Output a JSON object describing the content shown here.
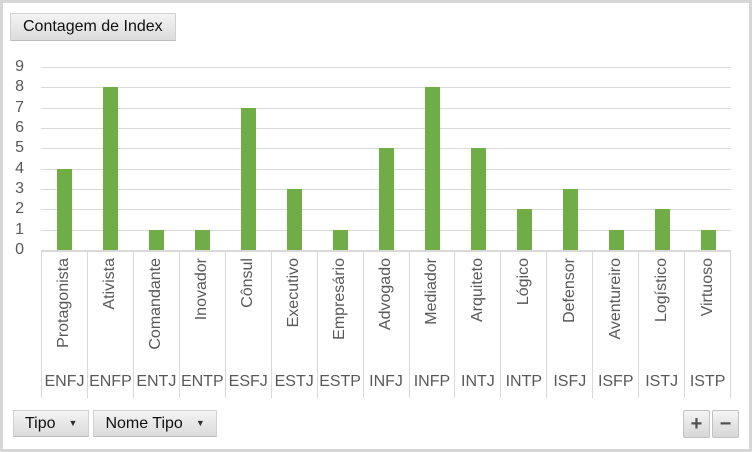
{
  "field_buttons": {
    "value_button_label": "Contagem de Index",
    "axis_buttons": [
      {
        "label": "Tipo"
      },
      {
        "label": "Nome Tipo"
      }
    ],
    "dropdown_arrow_icon": "▼",
    "expand_button_label": "+",
    "collapse_button_label": "−"
  },
  "chart_data": {
    "type": "bar",
    "series": [
      {
        "name": "Contagem de Index",
        "values": [
          4,
          8,
          1,
          1,
          7,
          3,
          1,
          5,
          8,
          5,
          2,
          3,
          1,
          2,
          1
        ]
      }
    ],
    "categories": [
      {
        "name": "Protagonista",
        "code": "ENFJ"
      },
      {
        "name": "Ativista",
        "code": "ENFP"
      },
      {
        "name": "Comandante",
        "code": "ENTJ"
      },
      {
        "name": "Inovador",
        "code": "ENTP"
      },
      {
        "name": "Cônsul",
        "code": "ESFJ"
      },
      {
        "name": "Executivo",
        "code": "ESTJ"
      },
      {
        "name": "Empresário",
        "code": "ESTP"
      },
      {
        "name": "Advogado",
        "code": "INFJ"
      },
      {
        "name": "Mediador",
        "code": "INFP"
      },
      {
        "name": "Arquiteto",
        "code": "INTJ"
      },
      {
        "name": "Lógico",
        "code": "INTP"
      },
      {
        "name": "Defensor",
        "code": "ISFJ"
      },
      {
        "name": "Aventureiro",
        "code": "ISFP"
      },
      {
        "name": "Logístico",
        "code": "ISTJ"
      },
      {
        "name": "Virtuoso",
        "code": "ISTP"
      }
    ],
    "ylim": [
      0,
      9
    ],
    "ytick_interval": 1,
    "grid": true,
    "legend": false,
    "bar_color": "#70AD47",
    "gridline_color": "#D9D9D9",
    "axis_text_color": "#595959"
  }
}
